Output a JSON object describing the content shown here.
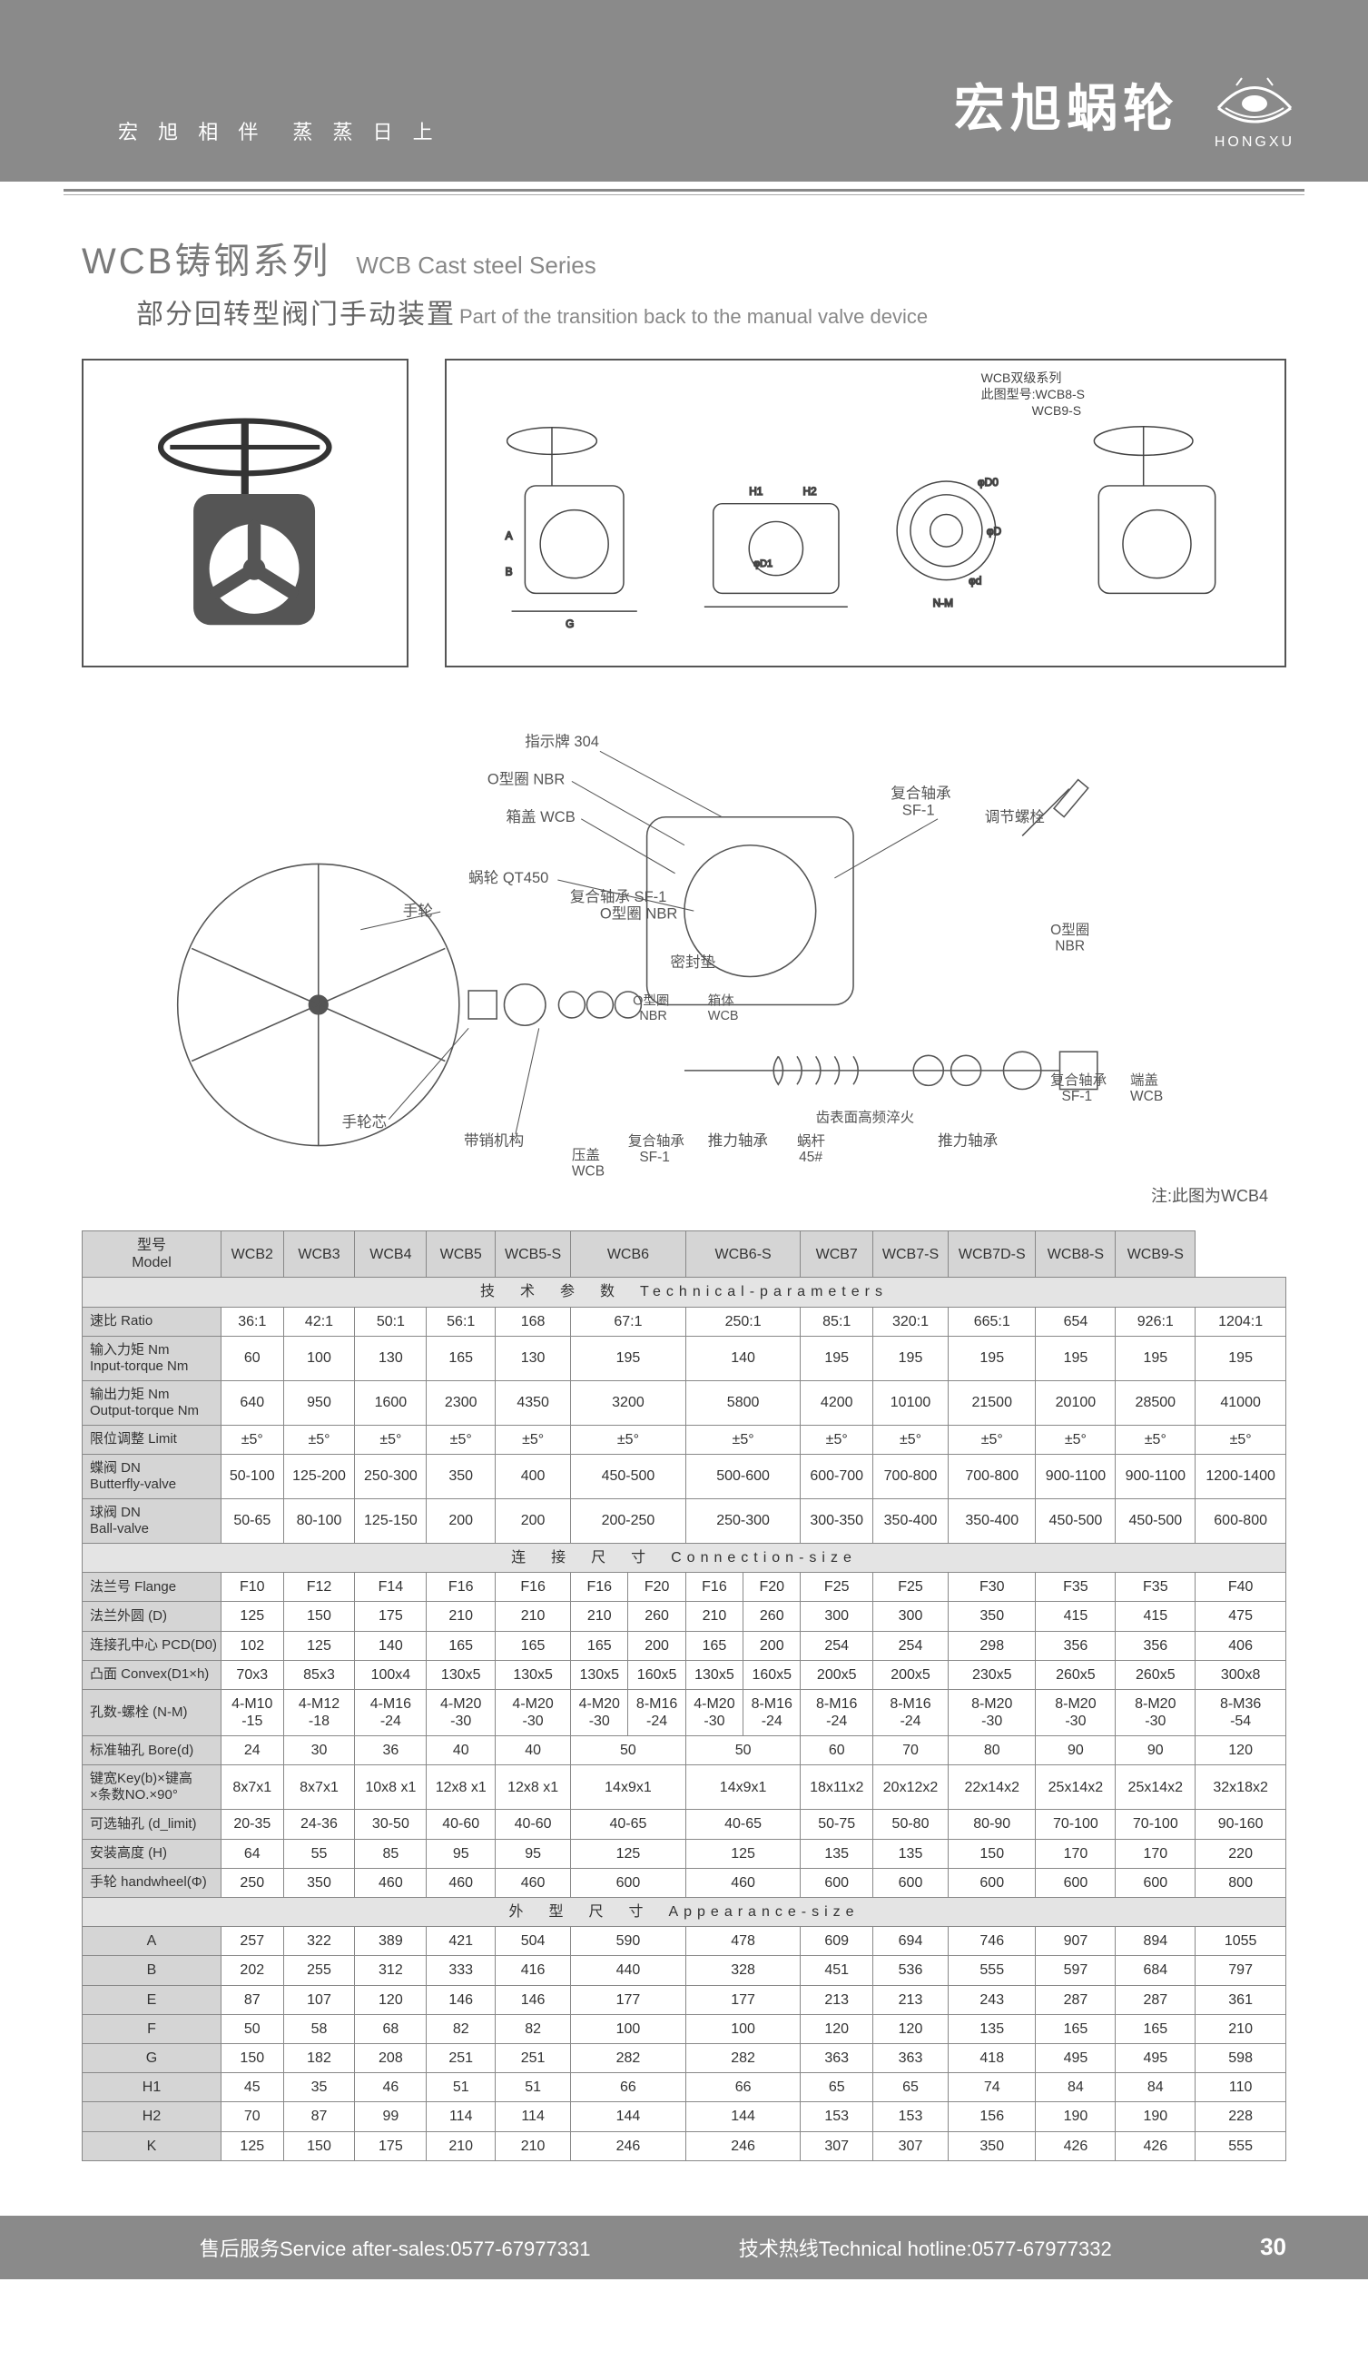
{
  "header": {
    "tagline": "宏 旭 相 伴　蒸 蒸 日 上",
    "brand_cn": "宏旭蜗轮",
    "brand_en": "HONGXU"
  },
  "title": {
    "series_cn": "WCB铸钢系列",
    "series_en": "WCB Cast steel Series",
    "sub_cn": "部分回转型阀门手动装置",
    "sub_en": "Part of the transition back to the manual valve device"
  },
  "fig2_labels": {
    "top1": "WCB双级系列",
    "top2": "此图型号:WCB8-S",
    "top3": "WCB9-S"
  },
  "exploded": {
    "note": "注:此图为WCB4",
    "labels": [
      "指示牌 304",
      "O型圈 NBR",
      "箱盖 WCB",
      "蜗轮 QT450",
      "手轮",
      "复合轴承 SF-1",
      "O型圈 NBR",
      "密封垫",
      "O型圈 NBR",
      "箱体 WCB",
      "手轮芯",
      "带销机构",
      "压盖 WCB",
      "复合轴承 SF-1",
      "推力轴承",
      "蜗杆 45#",
      "齿表面高频淬火",
      "推力轴承",
      "复合轴承 SF-1",
      "调节螺栓",
      "O型圈 NBR",
      "复合轴承 SF-1",
      "端盖 WCB"
    ]
  },
  "table": {
    "model_header_cn": "型号",
    "model_header_en": "Model",
    "models": [
      "WCB2",
      "WCB3",
      "WCB4",
      "WCB5",
      "WCB5-S",
      "WCB6",
      "WCB6-S",
      "WCB7",
      "WCB7-S",
      "WCB7D-S",
      "WCB8-S",
      "WCB9-S"
    ],
    "wcb6s_sub": [
      "",
      ""
    ],
    "section_tech": "技　术　参　数　Technical-parameters",
    "section_conn": "连　接　尺　寸　Connection-size",
    "section_app": "外　型　尺　寸　Appearance-size",
    "tech_rows": [
      {
        "label": "速比 Ratio",
        "cells": [
          "36:1",
          "42:1",
          "50:1",
          "56:1",
          "168",
          {
            "span": 2,
            "v": "67:1"
          },
          {
            "span": 2,
            "v": "250:1"
          },
          "85:1",
          "320:1",
          "665:1",
          "654",
          "926:1",
          "1204:1"
        ]
      },
      {
        "label": "输入力矩 Nm<br>Input-torque Nm",
        "cells": [
          "60",
          "100",
          "130",
          "165",
          "130",
          {
            "span": 2,
            "v": "195"
          },
          {
            "span": 2,
            "v": "140"
          },
          "195",
          "195",
          "195",
          "195",
          "195",
          "195"
        ]
      },
      {
        "label": "输出力矩 Nm<br>Output-torque Nm",
        "cells": [
          "640",
          "950",
          "1600",
          "2300",
          "4350",
          {
            "span": 2,
            "v": "3200"
          },
          {
            "span": 2,
            "v": "5800"
          },
          "4200",
          "10100",
          "21500",
          "20100",
          "28500",
          "41000"
        ]
      },
      {
        "label": "限位调整 Limit",
        "cells": [
          "±5°",
          "±5°",
          "±5°",
          "±5°",
          "±5°",
          {
            "span": 2,
            "v": "±5°"
          },
          {
            "span": 2,
            "v": "±5°"
          },
          "±5°",
          "±5°",
          "±5°",
          "±5°",
          "±5°",
          "±5°"
        ]
      },
      {
        "label": "蝶阀 DN<br>Butterfly-valve",
        "cells": [
          "50-100",
          "125-200",
          "250-300",
          "350",
          "400",
          {
            "span": 2,
            "v": "450-500"
          },
          {
            "span": 2,
            "v": "500-600"
          },
          "600-700",
          "700-800",
          "700-800",
          "900-1100",
          "900-1100",
          "1200-1400"
        ]
      },
      {
        "label": "球阀 DN<br>Ball-valve",
        "cells": [
          "50-65",
          "80-100",
          "125-150",
          "200",
          "200",
          {
            "span": 2,
            "v": "200-250"
          },
          {
            "span": 2,
            "v": "250-300"
          },
          "300-350",
          "350-400",
          "350-400",
          "450-500",
          "450-500",
          "600-800"
        ]
      }
    ],
    "conn_rows": [
      {
        "label": "法兰号 Flange",
        "cells": [
          "F10",
          "F12",
          "F14",
          "F16",
          "F16",
          "F16",
          "F20",
          "F16",
          "F20",
          "F25",
          "F25",
          "F30",
          "F35",
          "F35",
          "F40"
        ]
      },
      {
        "label": "法兰外圆 (D)",
        "cells": [
          "125",
          "150",
          "175",
          "210",
          "210",
          "210",
          "260",
          "210",
          "260",
          "300",
          "300",
          "350",
          "415",
          "415",
          "475"
        ]
      },
      {
        "label": "连接孔中心 PCD(D0)",
        "cells": [
          "102",
          "125",
          "140",
          "165",
          "165",
          "165",
          "200",
          "165",
          "200",
          "254",
          "254",
          "298",
          "356",
          "356",
          "406"
        ]
      },
      {
        "label": "凸面 Convex(D1×h)",
        "cells": [
          "70x3",
          "85x3",
          "100x4",
          "130x5",
          "130x5",
          "130x5",
          "160x5",
          "130x5",
          "160x5",
          "200x5",
          "200x5",
          "230x5",
          "260x5",
          "260x5",
          "300x8"
        ]
      },
      {
        "label": "孔数-螺栓 (N-M)",
        "cells": [
          "4-M10<br>-15",
          "4-M12<br>-18",
          "4-M16<br>-24",
          "4-M20<br>-30",
          "4-M20<br>-30",
          "4-M20<br>-30",
          "8-M16<br>-24",
          "4-M20<br>-30",
          "8-M16<br>-24",
          "8-M16<br>-24",
          "8-M16<br>-24",
          "8-M20<br>-30",
          "8-M20<br>-30",
          "8-M20<br>-30",
          "8-M36<br>-54"
        ]
      },
      {
        "label": "标准轴孔 Bore(d)",
        "cells": [
          "24",
          "30",
          "36",
          "40",
          "40",
          {
            "span": 2,
            "v": "50"
          },
          {
            "span": 2,
            "v": "50"
          },
          "60",
          "70",
          "80",
          "90",
          "90",
          "120"
        ]
      },
      {
        "label": "键宽Key(b)×键高<br>×条数NO.×90°",
        "cells": [
          "8x7x1",
          "8x7x1",
          "10x8 x1",
          "12x8 x1",
          "12x8 x1",
          {
            "span": 2,
            "v": "14x9x1"
          },
          {
            "span": 2,
            "v": "14x9x1"
          },
          "18x11x2",
          "20x12x2",
          "22x14x2",
          "25x14x2",
          "25x14x2",
          "32x18x2"
        ]
      },
      {
        "label": "可选轴孔 (d_limit)",
        "cells": [
          "20-35",
          "24-36",
          "30-50",
          "40-60",
          "40-60",
          {
            "span": 2,
            "v": "40-65"
          },
          {
            "span": 2,
            "v": "40-65"
          },
          "50-75",
          "50-80",
          "80-90",
          "70-100",
          "70-100",
          "90-160"
        ]
      },
      {
        "label": "安装高度 (H)",
        "cells": [
          "64",
          "55",
          "85",
          "95",
          "95",
          {
            "span": 2,
            "v": "125"
          },
          {
            "span": 2,
            "v": "125"
          },
          "135",
          "135",
          "150",
          "170",
          "170",
          "220"
        ]
      },
      {
        "label": "手轮 handwheel(Φ)",
        "cells": [
          "250",
          "350",
          "460",
          "460",
          "460",
          {
            "span": 2,
            "v": "600"
          },
          {
            "span": 2,
            "v": "460"
          },
          "600",
          "600",
          "600",
          "600",
          "600",
          "800"
        ]
      }
    ],
    "app_rows": [
      {
        "label": "A",
        "cells": [
          "257",
          "322",
          "389",
          "421",
          "504",
          {
            "span": 2,
            "v": "590"
          },
          {
            "span": 2,
            "v": "478"
          },
          "609",
          "694",
          "746",
          "907",
          "894",
          "1055"
        ]
      },
      {
        "label": "B",
        "cells": [
          "202",
          "255",
          "312",
          "333",
          "416",
          {
            "span": 2,
            "v": "440"
          },
          {
            "span": 2,
            "v": "328"
          },
          "451",
          "536",
          "555",
          "597",
          "684",
          "797"
        ]
      },
      {
        "label": "E",
        "cells": [
          "87",
          "107",
          "120",
          "146",
          "146",
          {
            "span": 2,
            "v": "177"
          },
          {
            "span": 2,
            "v": "177"
          },
          "213",
          "213",
          "243",
          "287",
          "287",
          "361"
        ]
      },
      {
        "label": "F",
        "cells": [
          "50",
          "58",
          "68",
          "82",
          "82",
          {
            "span": 2,
            "v": "100"
          },
          {
            "span": 2,
            "v": "100"
          },
          "120",
          "120",
          "135",
          "165",
          "165",
          "210"
        ]
      },
      {
        "label": "G",
        "cells": [
          "150",
          "182",
          "208",
          "251",
          "251",
          {
            "span": 2,
            "v": "282"
          },
          {
            "span": 2,
            "v": "282"
          },
          "363",
          "363",
          "418",
          "495",
          "495",
          "598"
        ]
      },
      {
        "label": "H1",
        "cells": [
          "45",
          "35",
          "46",
          "51",
          "51",
          {
            "span": 2,
            "v": "66"
          },
          {
            "span": 2,
            "v": "66"
          },
          "65",
          "65",
          "74",
          "84",
          "84",
          "110"
        ]
      },
      {
        "label": "H2",
        "cells": [
          "70",
          "87",
          "99",
          "114",
          "114",
          {
            "span": 2,
            "v": "144"
          },
          {
            "span": 2,
            "v": "144"
          },
          "153",
          "153",
          "156",
          "190",
          "190",
          "228"
        ]
      },
      {
        "label": "K",
        "cells": [
          "125",
          "150",
          "175",
          "210",
          "210",
          {
            "span": 2,
            "v": "246"
          },
          {
            "span": 2,
            "v": "246"
          },
          "307",
          "307",
          "350",
          "426",
          "426",
          "555"
        ]
      }
    ]
  },
  "footer": {
    "after_sales": "售后服务Service after-sales:0577-67977331",
    "hotline": "技术热线Technical hotline:0577-67977332",
    "page": "30"
  },
  "colors": {
    "header_bg": "#8a8a8a",
    "text_gray": "#7a7a7a",
    "table_header_bg": "#d5d5d5",
    "section_bg": "#e4e4e4",
    "border": "#888888"
  }
}
